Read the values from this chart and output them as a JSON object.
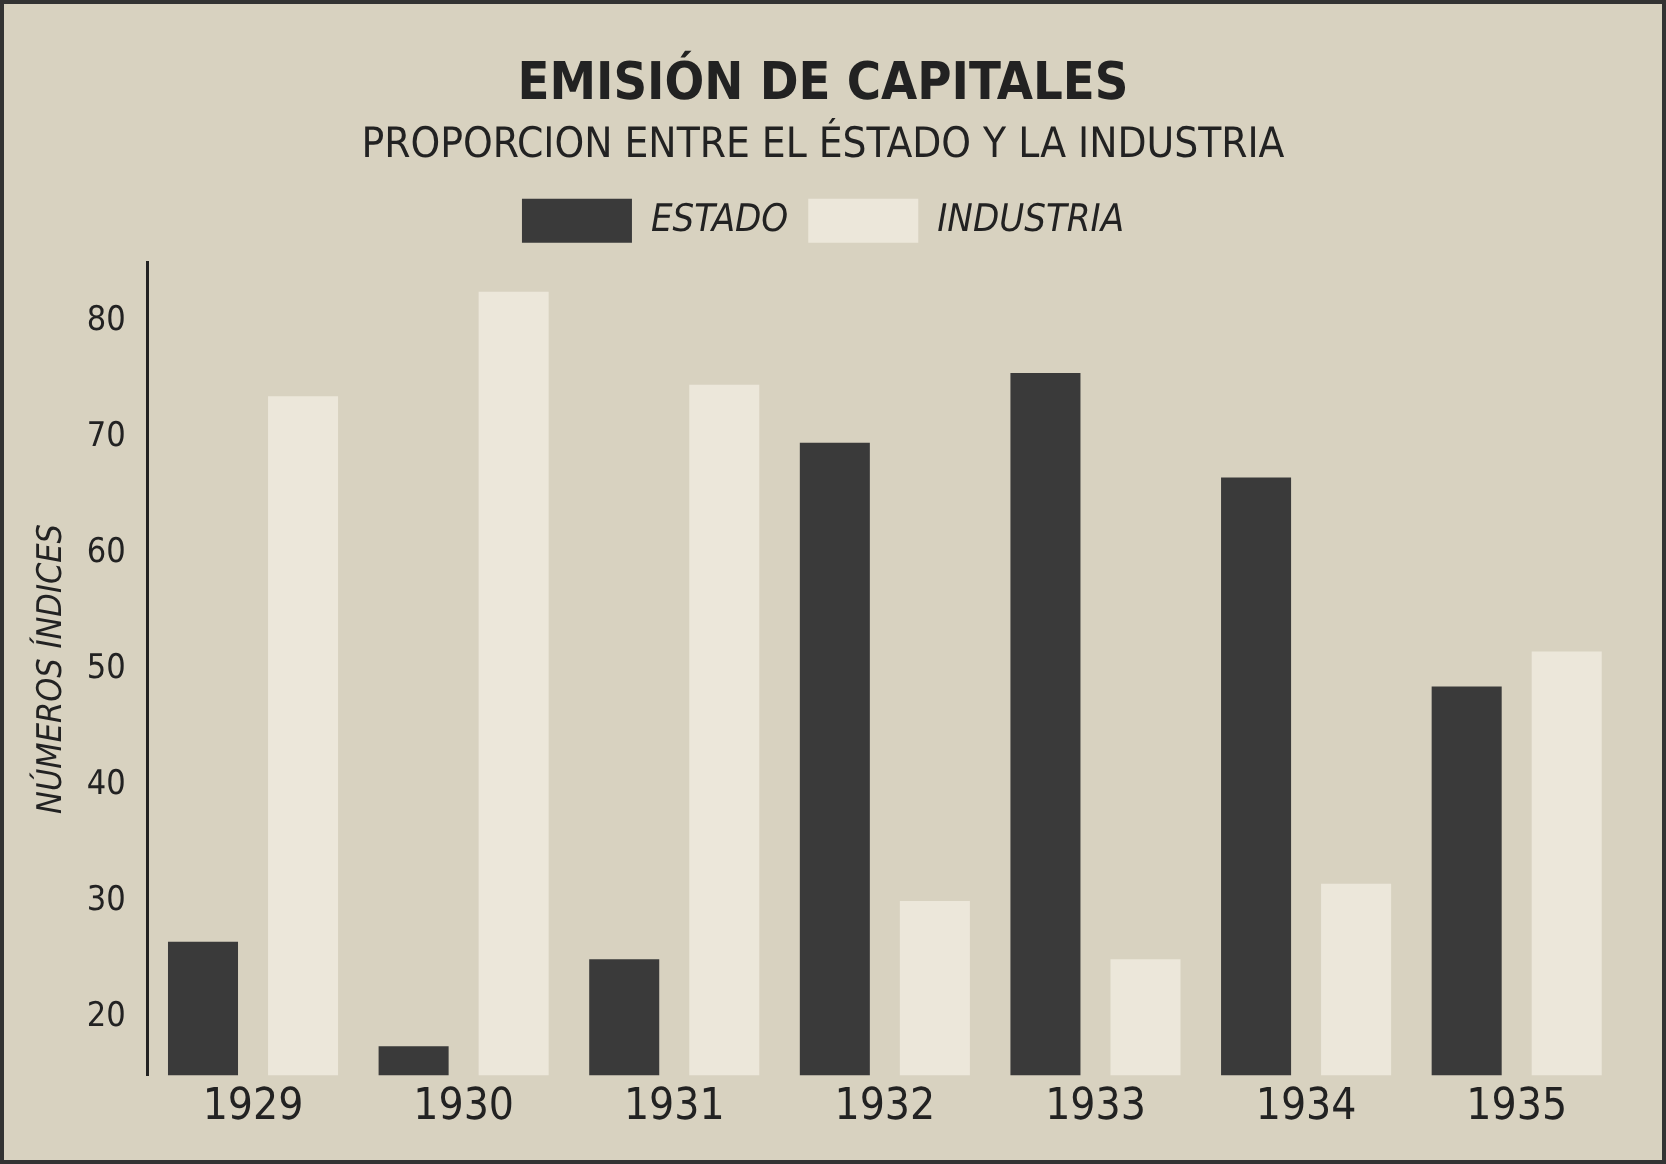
{
  "chart_data": {
    "type": "bar",
    "title": "EMISIÓN DE CAPITALES",
    "subtitle": "PROPORCION ENTRE EL ÉSTADO Y LA INDUSTRIA",
    "ylabel": "NÚMEROS ÍNDICES",
    "categories": [
      "1929",
      "1930",
      "1931",
      "1932",
      "1933",
      "1934",
      "1935"
    ],
    "series": [
      {
        "name": "ESTADO",
        "color": "#3a3a3a",
        "values": [
          26.5,
          17.5,
          25,
          69.5,
          75.5,
          66.5,
          48.5
        ]
      },
      {
        "name": "INDUSTRIA",
        "color": "#ece7da",
        "values": [
          73.5,
          82.5,
          74.5,
          30,
          25,
          31.5,
          51.5
        ]
      }
    ],
    "ylim": [
      15,
      85
    ],
    "yticks": [
      20,
      30,
      40,
      50,
      60,
      70,
      80
    ],
    "grid": false,
    "legend": "top"
  }
}
